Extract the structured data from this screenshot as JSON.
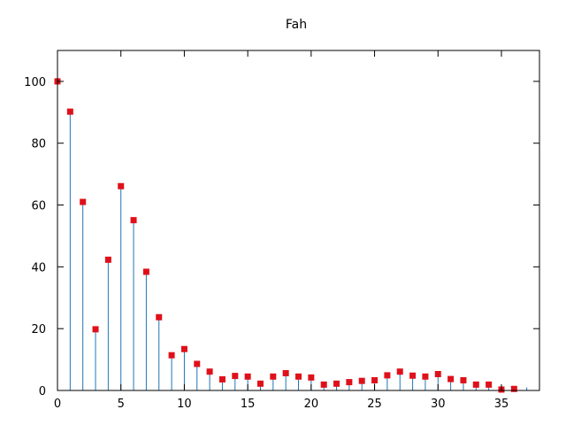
{
  "chart_data": {
    "type": "scatter",
    "title": "Fah",
    "xlabel": "",
    "ylabel": "",
    "xlim": [
      0,
      38
    ],
    "ylim": [
      0,
      110
    ],
    "xticks": [
      0,
      5,
      10,
      15,
      20,
      25,
      30,
      35
    ],
    "yticks": [
      0,
      20,
      40,
      60,
      80,
      100
    ],
    "grid": false,
    "impulse_color": "#1f77b4",
    "marker_color": "#e0101a",
    "series": [
      {
        "x": [
          0,
          1,
          2,
          3,
          4,
          5,
          6,
          7,
          8,
          9,
          10,
          11,
          12,
          13,
          14,
          15,
          16,
          17,
          18,
          19,
          20,
          21,
          22,
          23,
          24,
          25,
          26,
          27,
          28,
          29,
          30,
          31,
          32,
          33,
          34,
          35,
          36,
          37,
          38
        ],
        "y": [
          100,
          90.2,
          61,
          19.8,
          42.3,
          66.1,
          55.1,
          38.4,
          23.7,
          11.4,
          13.4,
          8.6,
          6.1,
          3.6,
          4.7,
          4.5,
          2.2,
          4.5,
          5.6,
          4.5,
          4.2,
          1.9,
          2.2,
          2.7,
          3.1,
          3.3,
          4.9,
          6.1,
          4.8,
          4.5,
          5.3,
          3.7,
          3.3,
          1.9,
          1.9,
          0.3,
          0.5,
          1.0,
          0.6
        ]
      }
    ]
  }
}
